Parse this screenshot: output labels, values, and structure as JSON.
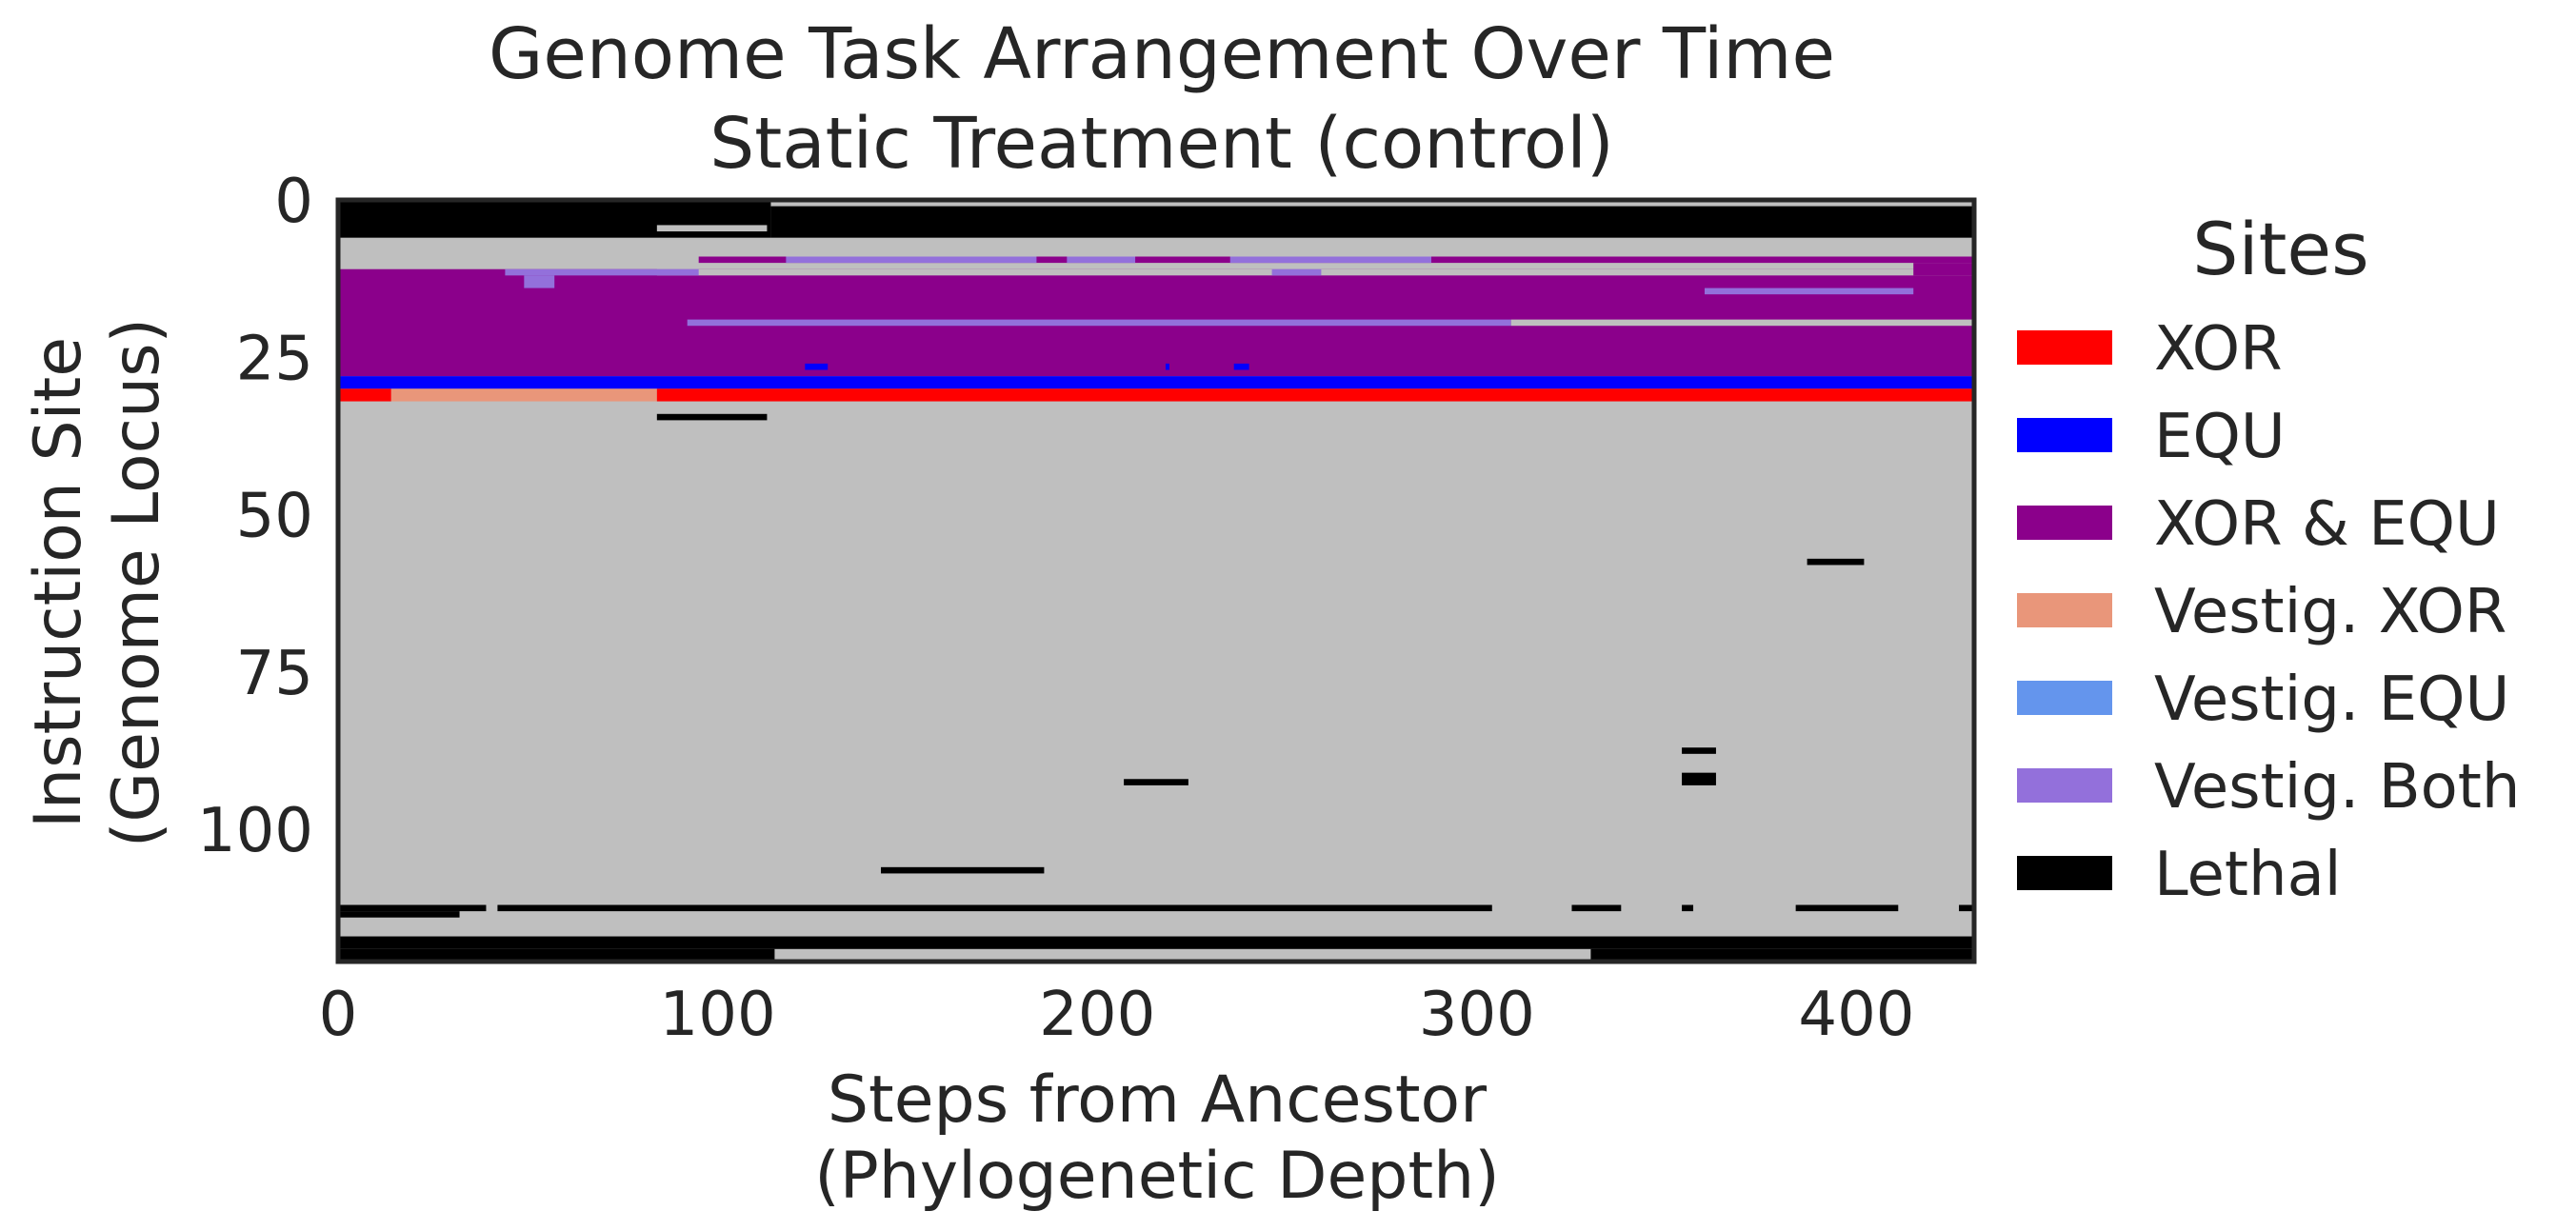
{
  "chart_data": {
    "type": "heatmap",
    "title": "Genome Task Arrangement Over Time",
    "subtitle": "Static Treatment (control)",
    "xlabel": [
      "Steps from Ancestor",
      "(Phylogenetic Depth)"
    ],
    "ylabel": [
      "Instruction Site",
      "(Genome Locus)"
    ],
    "xlim": [
      0,
      431
    ],
    "ylim": [
      0,
      121
    ],
    "y_inverted": true,
    "grid": false,
    "x_ticks": [
      0,
      100,
      200,
      300,
      400
    ],
    "y_ticks": [
      0,
      25,
      50,
      75,
      100
    ],
    "background_category": "Neutral",
    "colors": {
      "XOR": "#ff0000",
      "EQU": "#0000ff",
      "XOR & EQU": "#8b008b",
      "Vestig. XOR": "#e9967a",
      "Vestig. EQU": "#6495ed",
      "Vestig. Both": "#9370db",
      "Lethal": "#000000",
      "Neutral": "#bfbfbf"
    },
    "legend": {
      "title": "Sites",
      "position": "right",
      "entries": [
        "XOR",
        "EQU",
        "XOR & EQU",
        "Vestig. XOR",
        "Vestig. EQU",
        "Vestig. Both",
        "Lethal"
      ]
    },
    "segments": [
      {
        "category": "Lethal",
        "x0": 0,
        "x1": 114,
        "y0": 0,
        "y1": 6
      },
      {
        "category": "Lethal",
        "x0": 114,
        "x1": 431,
        "y0": 1,
        "y1": 6
      },
      {
        "category": "Neutral",
        "x0": 84,
        "x1": 113,
        "y0": 4,
        "y1": 5
      },
      {
        "category": "XOR & EQU",
        "x0": 0,
        "x1": 431,
        "y0": 11,
        "y1": 28
      },
      {
        "category": "Neutral",
        "x0": 84,
        "x1": 431,
        "y0": 11,
        "y1": 12
      },
      {
        "category": "XOR & EQU",
        "x0": 95,
        "x1": 431,
        "y0": 9,
        "y1": 10
      },
      {
        "category": "Vestig. Both",
        "x0": 118,
        "x1": 184,
        "y0": 9,
        "y1": 10
      },
      {
        "category": "Vestig. Both",
        "x0": 192,
        "x1": 210,
        "y0": 9,
        "y1": 10
      },
      {
        "category": "Vestig. Both",
        "x0": 235,
        "x1": 288,
        "y0": 9,
        "y1": 10
      },
      {
        "category": "Vestig. Both",
        "x0": 44,
        "x1": 95,
        "y0": 11,
        "y1": 12
      },
      {
        "category": "Vestig. Both",
        "x0": 49,
        "x1": 57,
        "y0": 12,
        "y1": 14
      },
      {
        "category": "Vestig. Both",
        "x0": 246,
        "x1": 259,
        "y0": 11,
        "y1": 12
      },
      {
        "category": "XOR & EQU",
        "x0": 415,
        "x1": 431,
        "y0": 10,
        "y1": 12
      },
      {
        "category": "Vestig. Both",
        "x0": 360,
        "x1": 415,
        "y0": 14,
        "y1": 15
      },
      {
        "category": "Vestig. Both",
        "x0": 92,
        "x1": 309,
        "y0": 19,
        "y1": 20
      },
      {
        "category": "Neutral",
        "x0": 309,
        "x1": 431,
        "y0": 19,
        "y1": 20
      },
      {
        "category": "EQU",
        "x0": 123,
        "x1": 129,
        "y0": 26,
        "y1": 27
      },
      {
        "category": "EQU",
        "x0": 218,
        "x1": 219,
        "y0": 26,
        "y1": 27
      },
      {
        "category": "EQU",
        "x0": 236,
        "x1": 240,
        "y0": 26,
        "y1": 27
      },
      {
        "category": "EQU",
        "x0": 0,
        "x1": 431,
        "y0": 28,
        "y1": 30
      },
      {
        "category": "XOR",
        "x0": 0,
        "x1": 14,
        "y0": 30,
        "y1": 32
      },
      {
        "category": "Vestig. XOR",
        "x0": 14,
        "x1": 84,
        "y0": 30,
        "y1": 32
      },
      {
        "category": "XOR",
        "x0": 84,
        "x1": 431,
        "y0": 30,
        "y1": 32
      },
      {
        "category": "Lethal",
        "x0": 84,
        "x1": 113,
        "y0": 34,
        "y1": 35
      },
      {
        "category": "Lethal",
        "x0": 387,
        "x1": 402,
        "y0": 57,
        "y1": 58
      },
      {
        "category": "Lethal",
        "x0": 354,
        "x1": 363,
        "y0": 87,
        "y1": 88
      },
      {
        "category": "Lethal",
        "x0": 354,
        "x1": 363,
        "y0": 91,
        "y1": 93
      },
      {
        "category": "Lethal",
        "x0": 207,
        "x1": 224,
        "y0": 92,
        "y1": 93
      },
      {
        "category": "Lethal",
        "x0": 143,
        "x1": 186,
        "y0": 106,
        "y1": 107
      },
      {
        "category": "Lethal",
        "x0": 0,
        "x1": 32,
        "y0": 113,
        "y1": 114
      },
      {
        "category": "Lethal",
        "x0": 0,
        "x1": 39,
        "y0": 112,
        "y1": 113
      },
      {
        "category": "Lethal",
        "x0": 42,
        "x1": 304,
        "y0": 112,
        "y1": 113
      },
      {
        "category": "Lethal",
        "x0": 325,
        "x1": 338,
        "y0": 112,
        "y1": 113
      },
      {
        "category": "Lethal",
        "x0": 354,
        "x1": 357,
        "y0": 112,
        "y1": 113
      },
      {
        "category": "Lethal",
        "x0": 384,
        "x1": 411,
        "y0": 112,
        "y1": 113
      },
      {
        "category": "Lethal",
        "x0": 427,
        "x1": 431,
        "y0": 112,
        "y1": 113
      },
      {
        "category": "Lethal",
        "x0": 0,
        "x1": 431,
        "y0": 117,
        "y1": 119
      },
      {
        "category": "Lethal",
        "x0": 0,
        "x1": 115,
        "y0": 119,
        "y1": 121
      },
      {
        "category": "Lethal",
        "x0": 330,
        "x1": 431,
        "y0": 119,
        "y1": 121
      }
    ]
  }
}
